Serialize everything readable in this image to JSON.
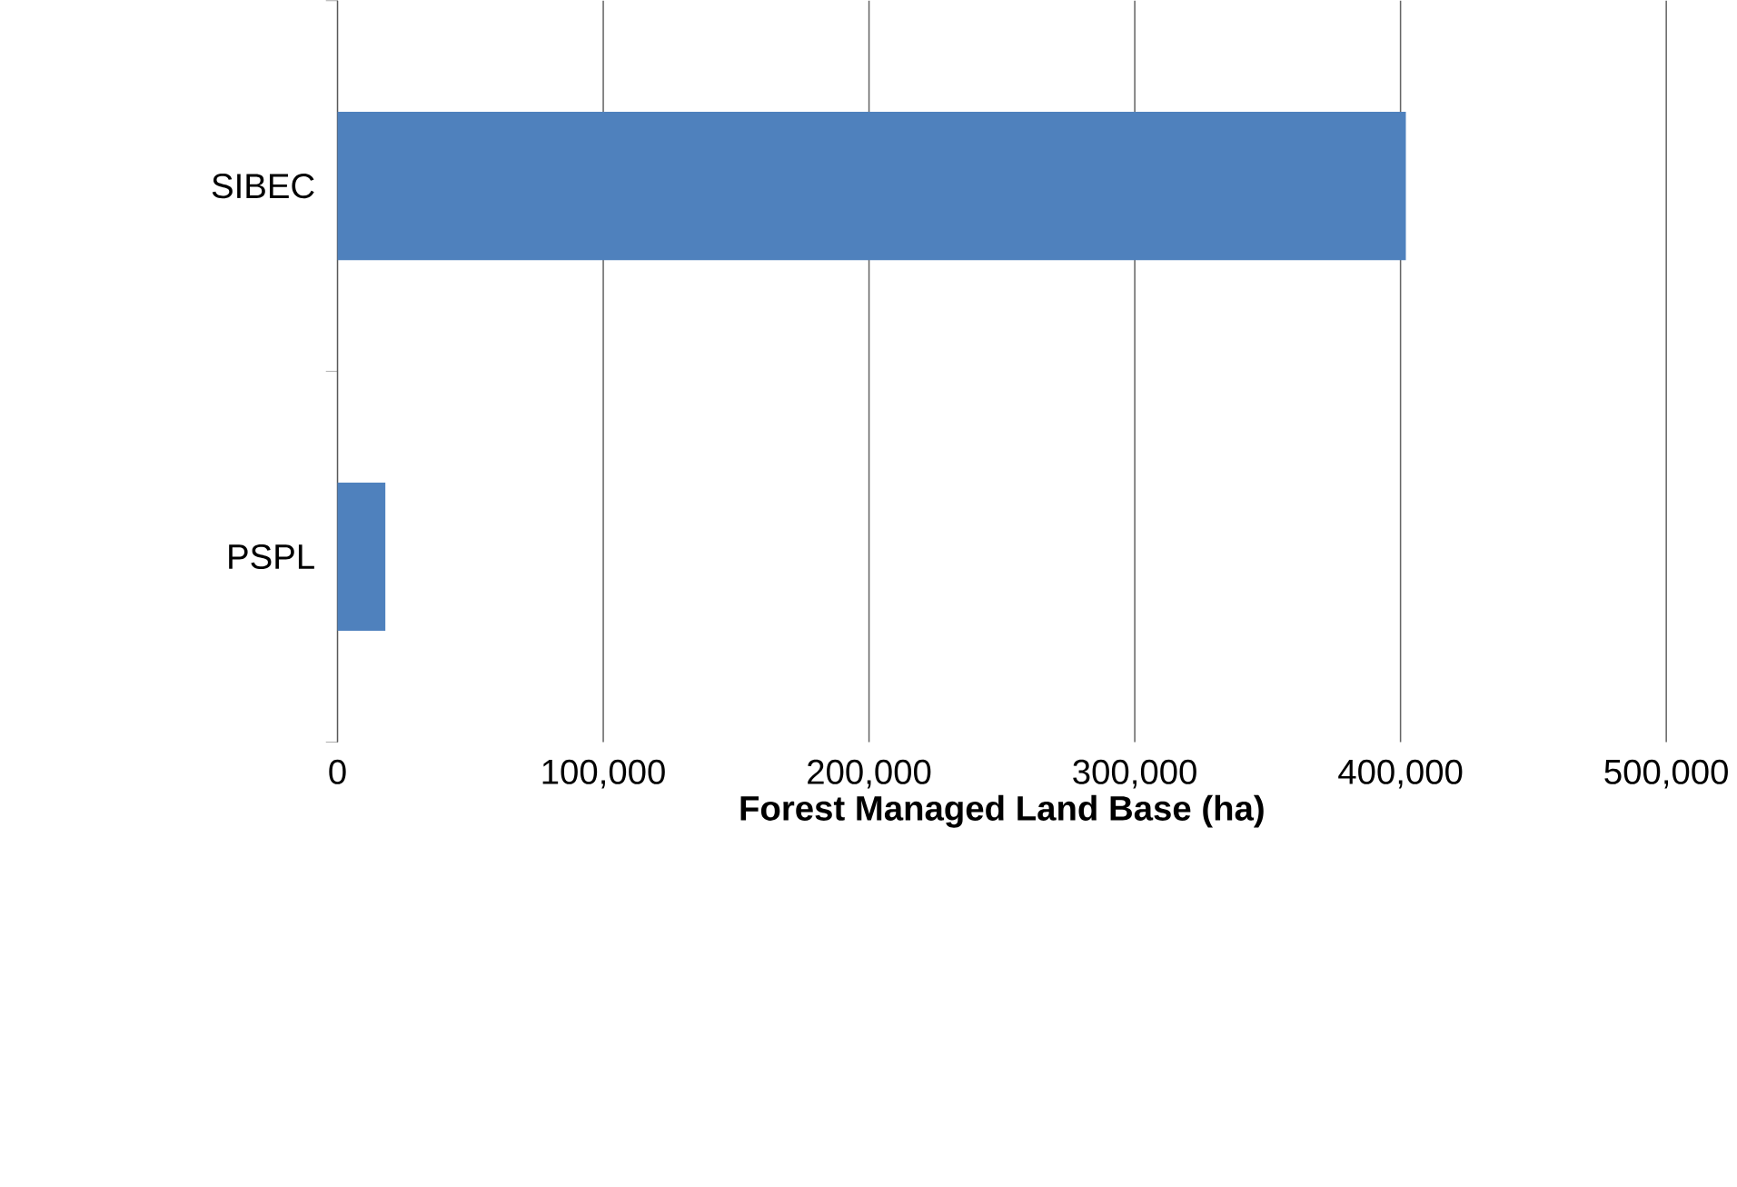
{
  "chart_data": {
    "type": "bar",
    "orientation": "horizontal",
    "categories": [
      "SIBEC",
      "PSPL"
    ],
    "values": [
      402000,
      18000
    ],
    "color": "#4f81bd",
    "xlim": [
      0,
      500000
    ],
    "xticks": [
      0,
      {
        "value": 100000,
        "label": "100,000"
      },
      {
        "value": 200000,
        "label": "200,000"
      },
      {
        "value": 300000,
        "label": "300,000"
      },
      {
        "value": 400000,
        "label": "400,000"
      },
      {
        "value": 500000,
        "label": "500,000"
      }
    ],
    "xlabel": "Forest Managed Land Base (ha)",
    "grid": "x"
  }
}
